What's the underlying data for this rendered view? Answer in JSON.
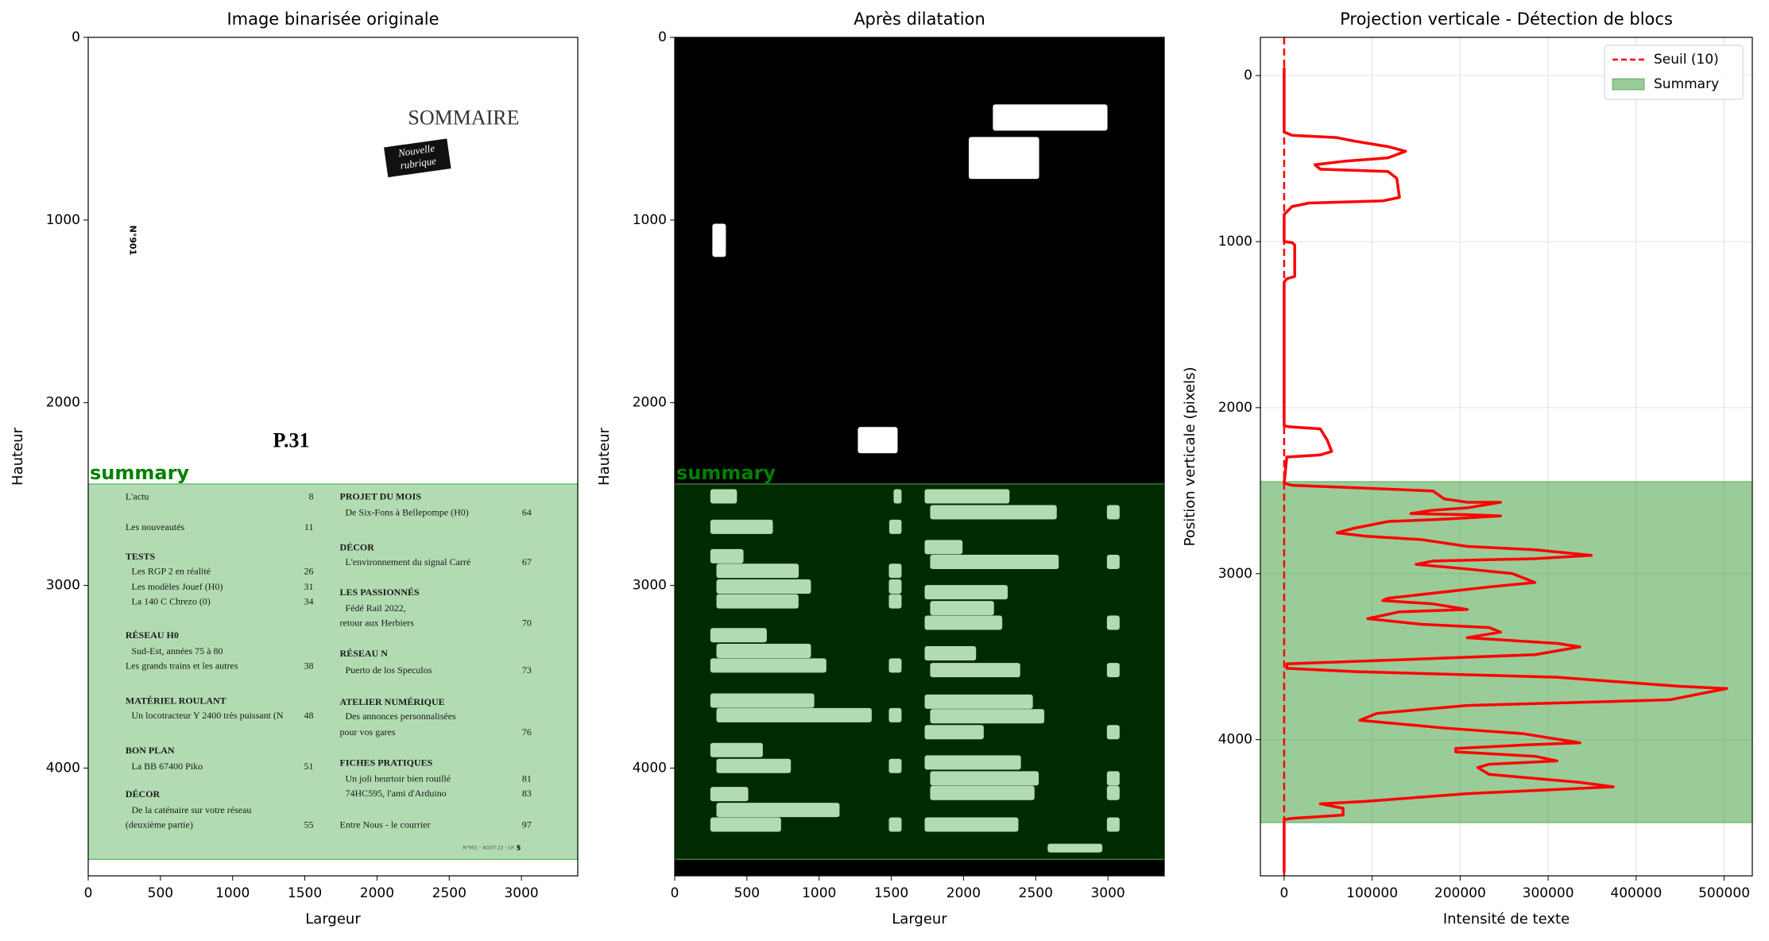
{
  "chart_data": [
    {
      "type": "image",
      "title": "Image binarisée originale",
      "xlabel": "Largeur",
      "ylabel": "Hauteur",
      "xlim": [
        0,
        3390
      ],
      "ylim": [
        4590,
        0
      ],
      "xticks": [
        0,
        500,
        1000,
        1500,
        2000,
        2500,
        3000
      ],
      "yticks": [
        0,
        1000,
        2000,
        3000,
        4000
      ],
      "summary_block": [
        2445,
        4500
      ],
      "annotation": "summary",
      "image_text": {
        "heading": "SOMMAIRE",
        "stamp": [
          "Nouvelle",
          "rubrique"
        ],
        "issue": "N°901",
        "page_ref": "P.31",
        "footer": "N°901 - AOÛT 22 - LR",
        "footer_page": "5",
        "entries": [
          {
            "text": "L'actu",
            "page": "8"
          },
          {
            "text": "Les nouveautés",
            "page": "11"
          },
          {
            "text": "TESTS"
          },
          {
            "text": "Les RGP 2 en réalité",
            "page": "26"
          },
          {
            "text": "Les modèles Jouef (H0)",
            "page": "31"
          },
          {
            "text": "La 140 C Chrezo (0)",
            "page": "34"
          },
          {
            "text": "RÉSEAU H0"
          },
          {
            "text": "Sud-Est, années 75 à 80"
          },
          {
            "text": "Les grands trains et les autres",
            "page": "38"
          },
          {
            "text": "MATÉRIEL ROULANT"
          },
          {
            "text": "Un locotracteur Y 2400 très puissant (N",
            "page": "48"
          },
          {
            "text": "BON PLAN"
          },
          {
            "text": "La BB 67400 Piko",
            "page": "51"
          },
          {
            "text": "DÉCOR"
          },
          {
            "text": "De la caténaire sur votre réseau"
          },
          {
            "text": "(deuxième partie)",
            "page": "55"
          },
          {
            "text": "PROJET DU MOIS"
          },
          {
            "text": "De Six-Fons à Bellepompe (H0)",
            "page": "64"
          },
          {
            "text": "DÉCOR"
          },
          {
            "text": "L'environnement du signal Carré",
            "page": "67"
          },
          {
            "text": "LES PASSIONNÉS"
          },
          {
            "text": "Fédé Rail 2022,"
          },
          {
            "text": "retour aux Herbiers",
            "page": "70"
          },
          {
            "text": "RÉSEAU N"
          },
          {
            "text": "Puerto de los Speculos",
            "page": "73"
          },
          {
            "text": "ATELIER NUMÉRIQUE"
          },
          {
            "text": "Des annonces personnalisées"
          },
          {
            "text": "pour vos gares",
            "page": "76"
          },
          {
            "text": "FICHES PRATIQUES"
          },
          {
            "text": "Un joli heurtoir bien rouillé",
            "page": "81"
          },
          {
            "text": "74HC595, l'ami d'Arduino",
            "page": "83"
          },
          {
            "text": "Entre Nous - le courrier",
            "page": "97"
          }
        ]
      }
    },
    {
      "type": "mask",
      "title": "Après dilatation",
      "xlabel": "Largeur",
      "ylabel": "Hauteur",
      "xlim": [
        0,
        3390
      ],
      "ylim": [
        4590,
        0
      ],
      "xticks": [
        0,
        500,
        1000,
        1500,
        2000,
        2500,
        3000
      ],
      "yticks": [
        0,
        1000,
        2000,
        3000,
        4000
      ],
      "summary_block": [
        2445,
        4500
      ],
      "annotation": "summary"
    },
    {
      "type": "line",
      "title": "Projection verticale - Détection de blocs",
      "xlabel": "Intensité de texte",
      "ylabel": "Position verticale (pixels)",
      "xlim": [
        -27000,
        532000
      ],
      "ylim": [
        4820,
        -230
      ],
      "xticks": [
        0,
        100000,
        200000,
        300000,
        400000,
        500000
      ],
      "yticks": [
        0,
        1000,
        2000,
        3000,
        4000
      ],
      "grid": true,
      "legend": "upper right",
      "threshold": {
        "name": "Seuil (10)",
        "value": 10,
        "color": "red"
      },
      "span": {
        "name": "Summary",
        "from": 2445,
        "to": 4500,
        "color": "green"
      },
      "series": [
        {
          "color": "red",
          "x": [
            0,
            0,
            9000,
            60000,
            79000,
            118000,
            138000,
            118000,
            67000,
            35000,
            41000,
            118000,
            128000,
            131000,
            112000,
            28000,
            9000,
            0,
            0,
            9000,
            12000,
            12000,
            3000,
            0,
            0,
            5000,
            41000,
            49000,
            54000,
            41000,
            3000,
            0,
            9000,
            79000,
            169000,
            182000,
            208000,
            246000,
            208000,
            169000,
            144000,
            208000,
            246000,
            182000,
            118000,
            79000,
            60000,
            92000,
            156000,
            208000,
            285000,
            349000,
            285000,
            169000,
            150000,
            208000,
            259000,
            285000,
            233000,
            118000,
            112000,
            169000,
            208000,
            131000,
            95000,
            156000,
            233000,
            246000,
            208000,
            310000,
            336000,
            285000,
            79000,
            3000,
            3000,
            79000,
            310000,
            451000,
            503000,
            438000,
            208000,
            105000,
            86000,
            182000,
            272000,
            336000,
            272000,
            195000,
            195000,
            285000,
            310000,
            233000,
            220000,
            233000,
            336000,
            374000,
            208000,
            92000,
            41000,
            67000,
            67000,
            9000,
            0,
            0
          ],
          "values": [
            -50,
            340,
            360,
            374,
            394,
            428,
            456,
            496,
            517,
            537,
            564,
            578,
            619,
            734,
            755,
            768,
            789,
            836,
            1000,
            1006,
            1020,
            1210,
            1224,
            1244,
            2108,
            2115,
            2128,
            2196,
            2264,
            2285,
            2298,
            2455,
            2468,
            2482,
            2502,
            2550,
            2570,
            2570,
            2604,
            2618,
            2638,
            2645,
            2652,
            2672,
            2686,
            2727,
            2754,
            2774,
            2795,
            2836,
            2856,
            2890,
            2910,
            2924,
            2944,
            2972,
            2999,
            3053,
            3080,
            3148,
            3162,
            3182,
            3216,
            3230,
            3271,
            3305,
            3325,
            3352,
            3386,
            3420,
            3441,
            3488,
            3529,
            3543,
            3570,
            3590,
            3624,
            3679,
            3692,
            3760,
            3794,
            3842,
            3883,
            3930,
            3964,
            4019,
            4032,
            4053,
            4073,
            4100,
            4128,
            4148,
            4168,
            4209,
            4257,
            4284,
            4325,
            4372,
            4386,
            4413,
            4454,
            4474,
            4481,
            4800
          ]
        }
      ]
    }
  ]
}
